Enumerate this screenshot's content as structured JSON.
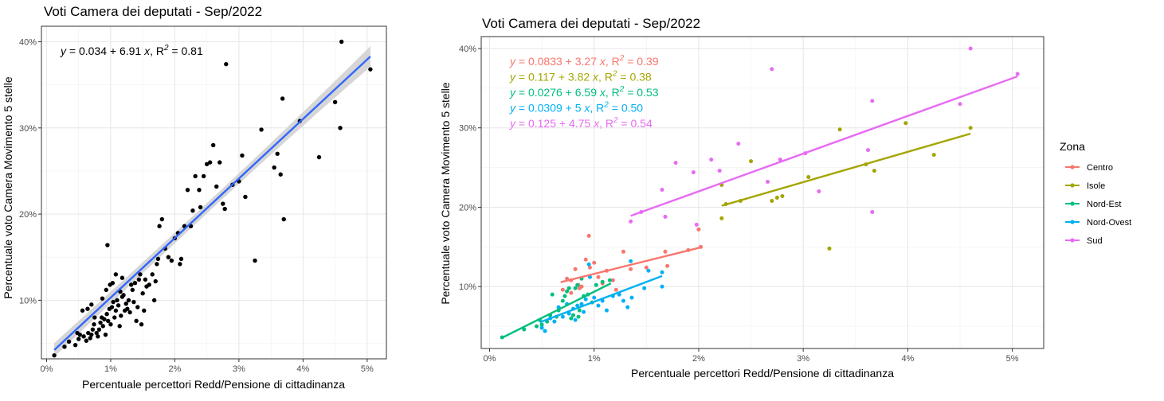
{
  "chart_data": [
    {
      "type": "scatter",
      "title": "Voti Camera dei deputati - Sep/2022",
      "xlabel": "Percentuale percettori Redd/Pensione di cittadinanza",
      "ylabel": "Percentuale voto Camera Movimento 5 stelle",
      "x_ticks": [
        "0%",
        "1%",
        "2%",
        "3%",
        "4%",
        "5%"
      ],
      "y_ticks": [
        "10%",
        "20%",
        "30%",
        "40%"
      ],
      "xlim": [
        -0.0008,
        0.053
      ],
      "ylim": [
        0.032,
        0.418
      ],
      "grid": true,
      "point_color": "#000000",
      "fit_color": "#3366ff",
      "band_color": "#d2d2d2",
      "fit": {
        "intercept": 0.034,
        "slope": 6.91,
        "x_range": [
          0.0012,
          0.0505
        ],
        "band_se": [
          0.008,
          0.006,
          0.012
        ]
      },
      "annotation": {
        "text": "y = 0.034 + 6.91 x, R² = 0.81",
        "y_part": "y",
        "mid_part": " = 0.034 + 6.91 ",
        "x_part": "x",
        "r_part": ", R",
        "sup": "2",
        "end_part": " = 0.81"
      },
      "points": [
        [
          0.0012,
          0.036
        ],
        [
          0.0028,
          0.046
        ],
        [
          0.0035,
          0.052
        ],
        [
          0.0045,
          0.048
        ],
        [
          0.005,
          0.055
        ],
        [
          0.0052,
          0.06
        ],
        [
          0.0048,
          0.062
        ],
        [
          0.0058,
          0.058
        ],
        [
          0.0062,
          0.053
        ],
        [
          0.0065,
          0.062
        ],
        [
          0.0068,
          0.056
        ],
        [
          0.007,
          0.06
        ],
        [
          0.0072,
          0.066
        ],
        [
          0.0074,
          0.072
        ],
        [
          0.0075,
          0.08
        ],
        [
          0.0078,
          0.062
        ],
        [
          0.008,
          0.058
        ],
        [
          0.0082,
          0.066
        ],
        [
          0.0084,
          0.074
        ],
        [
          0.0086,
          0.08
        ],
        [
          0.0088,
          0.07
        ],
        [
          0.009,
          0.078
        ],
        [
          0.0092,
          0.06
        ],
        [
          0.0094,
          0.084
        ],
        [
          0.0096,
          0.076
        ],
        [
          0.0098,
          0.09
        ],
        [
          0.01,
          0.072
        ],
        [
          0.0102,
          0.092
        ],
        [
          0.0104,
          0.098
        ],
        [
          0.0106,
          0.08
        ],
        [
          0.0108,
          0.088
        ],
        [
          0.011,
          0.1
        ],
        [
          0.0112,
          0.094
        ],
        [
          0.0114,
          0.07
        ],
        [
          0.0116,
          0.082
        ],
        [
          0.0118,
          0.104
        ],
        [
          0.012,
          0.106
        ],
        [
          0.0122,
          0.088
        ],
        [
          0.0124,
          0.096
        ],
        [
          0.0126,
          0.09
        ],
        [
          0.0128,
          0.1
        ],
        [
          0.013,
          0.086
        ],
        [
          0.0132,
          0.118
        ],
        [
          0.0134,
          0.112
        ],
        [
          0.0136,
          0.098
        ],
        [
          0.0138,
          0.12
        ],
        [
          0.014,
          0.076
        ],
        [
          0.0142,
          0.092
        ],
        [
          0.0144,
          0.124
        ],
        [
          0.0146,
          0.13
        ],
        [
          0.0148,
          0.072
        ],
        [
          0.015,
          0.108
        ],
        [
          0.0152,
          0.088
        ],
        [
          0.0154,
          0.124
        ],
        [
          0.0156,
          0.116
        ],
        [
          0.016,
          0.118
        ],
        [
          0.0165,
          0.13
        ],
        [
          0.0168,
          0.1
        ],
        [
          0.017,
          0.122
        ],
        [
          0.0172,
          0.142
        ],
        [
          0.0174,
          0.148
        ],
        [
          0.0176,
          0.186
        ],
        [
          0.018,
          0.194
        ],
        [
          0.0185,
          0.16
        ],
        [
          0.019,
          0.15
        ],
        [
          0.0195,
          0.146
        ],
        [
          0.02,
          0.172
        ],
        [
          0.0205,
          0.178
        ],
        [
          0.0208,
          0.142
        ],
        [
          0.021,
          0.148
        ],
        [
          0.0215,
          0.186
        ],
        [
          0.022,
          0.228
        ],
        [
          0.0225,
          0.186
        ],
        [
          0.0228,
          0.204
        ],
        [
          0.0232,
          0.244
        ],
        [
          0.0238,
          0.228
        ],
        [
          0.024,
          0.208
        ],
        [
          0.0245,
          0.244
        ],
        [
          0.025,
          0.258
        ],
        [
          0.0255,
          0.26
        ],
        [
          0.026,
          0.28
        ],
        [
          0.0265,
          0.232
        ],
        [
          0.027,
          0.26
        ],
        [
          0.0275,
          0.212
        ],
        [
          0.0278,
          0.206
        ],
        [
          0.028,
          0.374
        ],
        [
          0.029,
          0.234
        ],
        [
          0.03,
          0.238
        ],
        [
          0.0305,
          0.268
        ],
        [
          0.031,
          0.22
        ],
        [
          0.0325,
          0.146
        ],
        [
          0.0335,
          0.298
        ],
        [
          0.0355,
          0.254
        ],
        [
          0.036,
          0.27
        ],
        [
          0.0365,
          0.246
        ],
        [
          0.0368,
          0.334
        ],
        [
          0.037,
          0.194
        ],
        [
          0.0395,
          0.308
        ],
        [
          0.0425,
          0.266
        ],
        [
          0.045,
          0.33
        ],
        [
          0.0458,
          0.3
        ],
        [
          0.046,
          0.4
        ],
        [
          0.0505,
          0.368
        ],
        [
          0.0095,
          0.164
        ],
        [
          0.0108,
          0.13
        ],
        [
          0.0118,
          0.126
        ],
        [
          0.0056,
          0.088
        ],
        [
          0.0064,
          0.09
        ],
        [
          0.007,
          0.095
        ],
        [
          0.0087,
          0.102
        ],
        [
          0.0093,
          0.112
        ],
        [
          0.0099,
          0.118
        ],
        [
          0.0103,
          0.12
        ],
        [
          0.0115,
          0.11
        ]
      ]
    },
    {
      "type": "scatter",
      "title": "Voti Camera dei deputati - Sep/2022",
      "xlabel": "Percentuale percettori Redd/Pensione di cittadinanza",
      "ylabel": "Percentuale voto Camera Movimento 5 stelle",
      "x_ticks": [
        "0%",
        "1%",
        "2%",
        "3%",
        "4%",
        "5%"
      ],
      "y_ticks": [
        "10%",
        "20%",
        "30%",
        "40%"
      ],
      "xlim": [
        -0.0008,
        0.053
      ],
      "ylim": [
        0.022,
        0.415
      ],
      "grid": true,
      "legend": {
        "title": "Zona",
        "placement": "right"
      },
      "series": [
        {
          "name": "Centro",
          "color": "#f8766d",
          "fit": {
            "intercept": 0.0833,
            "slope": 3.27,
            "x_range": [
              0.0068,
              0.0202
            ]
          },
          "annotation": {
            "y_part": "y",
            "mid_part": " = 0.0833 + 3.27 ",
            "x_part": "x",
            "r_part": ", R",
            "sup": "2",
            "end_part": " = 0.39"
          },
          "points": [
            [
              0.007,
              0.096
            ],
            [
              0.0074,
              0.11
            ],
            [
              0.0078,
              0.108
            ],
            [
              0.0082,
              0.122
            ],
            [
              0.0085,
              0.102
            ],
            [
              0.0088,
              0.1
            ],
            [
              0.0092,
              0.134
            ],
            [
              0.0095,
              0.164
            ],
            [
              0.01,
              0.13
            ],
            [
              0.0104,
              0.112
            ],
            [
              0.0108,
              0.104
            ],
            [
              0.0112,
              0.12
            ],
            [
              0.0118,
              0.108
            ],
            [
              0.0128,
              0.144
            ],
            [
              0.0135,
              0.122
            ],
            [
              0.015,
              0.124
            ],
            [
              0.0168,
              0.144
            ],
            [
              0.017,
              0.126
            ],
            [
              0.019,
              0.146
            ],
            [
              0.02,
              0.172
            ],
            [
              0.0202,
              0.15
            ],
            [
              0.0096,
              0.124
            ],
            [
              0.0078,
              0.092
            ],
            [
              0.0086,
              0.098
            ],
            [
              0.0121,
              0.096
            ]
          ]
        },
        {
          "name": "Isole",
          "color": "#a3a500",
          "fit": {
            "intercept": 0.117,
            "slope": 3.82,
            "x_range": [
              0.0222,
              0.046
            ]
          },
          "annotation": {
            "y_part": "y",
            "mid_part": " = 0.117 + 3.82 ",
            "x_part": "x",
            "r_part": ", R",
            "sup": "2",
            "end_part": " = 0.38"
          },
          "points": [
            [
              0.0222,
              0.228
            ],
            [
              0.0222,
              0.186
            ],
            [
              0.0226,
              0.204
            ],
            [
              0.024,
              0.208
            ],
            [
              0.025,
              0.258
            ],
            [
              0.027,
              0.208
            ],
            [
              0.0275,
              0.212
            ],
            [
              0.028,
              0.214
            ],
            [
              0.0305,
              0.238
            ],
            [
              0.0325,
              0.148
            ],
            [
              0.0335,
              0.298
            ],
            [
              0.036,
              0.254
            ],
            [
              0.0368,
              0.246
            ],
            [
              0.0398,
              0.306
            ],
            [
              0.0425,
              0.266
            ],
            [
              0.046,
              0.3
            ]
          ]
        },
        {
          "name": "Nord-Est",
          "color": "#00bf7d",
          "fit": {
            "intercept": 0.0276,
            "slope": 6.59,
            "x_range": [
              0.0012,
              0.0116
            ]
          },
          "annotation": {
            "y_part": "y",
            "mid_part": " = 0.0276 + 6.59 ",
            "x_part": "x",
            "r_part": ", R",
            "sup": "2",
            "end_part": " = 0.53"
          },
          "points": [
            [
              0.0012,
              0.036
            ],
            [
              0.0033,
              0.046
            ],
            [
              0.0045,
              0.05
            ],
            [
              0.0048,
              0.058
            ],
            [
              0.005,
              0.052
            ],
            [
              0.0055,
              0.056
            ],
            [
              0.0058,
              0.064
            ],
            [
              0.006,
              0.09
            ],
            [
              0.0064,
              0.062
            ],
            [
              0.0066,
              0.07
            ],
            [
              0.007,
              0.082
            ],
            [
              0.0072,
              0.088
            ],
            [
              0.0074,
              0.094
            ],
            [
              0.0076,
              0.098
            ],
            [
              0.0078,
              0.06
            ],
            [
              0.008,
              0.064
            ],
            [
              0.0082,
              0.098
            ],
            [
              0.0084,
              0.102
            ],
            [
              0.0086,
              0.07
            ],
            [
              0.009,
              0.088
            ],
            [
              0.0094,
              0.09
            ],
            [
              0.0098,
              0.08
            ],
            [
              0.0102,
              0.102
            ],
            [
              0.0108,
              0.106
            ],
            [
              0.0115,
              0.108
            ],
            [
              0.0088,
              0.11
            ],
            [
              0.0085,
              0.062
            ]
          ]
        },
        {
          "name": "Nord-Ovest",
          "color": "#00b0f6",
          "fit": {
            "intercept": 0.0309,
            "slope": 5.0,
            "x_range": [
              0.0048,
              0.0165
            ]
          },
          "annotation": {
            "y_part": "y",
            "mid_part": " = 0.0309 + 5 ",
            "x_part": "x",
            "r_part": ", R",
            "sup": "2",
            "end_part": " = 0.50"
          },
          "points": [
            [
              0.005,
              0.048
            ],
            [
              0.0053,
              0.044
            ],
            [
              0.0058,
              0.06
            ],
            [
              0.0062,
              0.056
            ],
            [
              0.0066,
              0.074
            ],
            [
              0.007,
              0.062
            ],
            [
              0.0074,
              0.078
            ],
            [
              0.0076,
              0.066
            ],
            [
              0.008,
              0.072
            ],
            [
              0.0082,
              0.058
            ],
            [
              0.0084,
              0.076
            ],
            [
              0.0088,
              0.078
            ],
            [
              0.0092,
              0.084
            ],
            [
              0.0095,
              0.128
            ],
            [
              0.0096,
              0.112
            ],
            [
              0.01,
              0.086
            ],
            [
              0.0104,
              0.076
            ],
            [
              0.0108,
              0.082
            ],
            [
              0.0112,
              0.07
            ],
            [
              0.0118,
              0.088
            ],
            [
              0.0124,
              0.09
            ],
            [
              0.0128,
              0.082
            ],
            [
              0.0132,
              0.074
            ],
            [
              0.0135,
              0.132
            ],
            [
              0.0136,
              0.086
            ],
            [
              0.0148,
              0.098
            ],
            [
              0.0152,
              0.12
            ],
            [
              0.0165,
              0.1
            ],
            [
              0.0165,
              0.118
            ],
            [
              0.009,
              0.068
            ]
          ]
        },
        {
          "name": "Sud",
          "color": "#e76bf3",
          "fit": {
            "intercept": 0.125,
            "slope": 4.75,
            "x_range": [
              0.0135,
              0.0505
            ]
          },
          "annotation": {
            "y_part": "y",
            "mid_part": " = 0.125 + 4.75 ",
            "x_part": "x",
            "r_part": ", R",
            "sup": "2",
            "end_part": " = 0.54"
          },
          "points": [
            [
              0.0135,
              0.182
            ],
            [
              0.0145,
              0.194
            ],
            [
              0.0165,
              0.222
            ],
            [
              0.0168,
              0.188
            ],
            [
              0.0178,
              0.256
            ],
            [
              0.0195,
              0.244
            ],
            [
              0.0198,
              0.178
            ],
            [
              0.0212,
              0.26
            ],
            [
              0.022,
              0.246
            ],
            [
              0.0238,
              0.28
            ],
            [
              0.0266,
              0.232
            ],
            [
              0.027,
              0.374
            ],
            [
              0.0278,
              0.26
            ],
            [
              0.0302,
              0.268
            ],
            [
              0.0315,
              0.22
            ],
            [
              0.0362,
              0.272
            ],
            [
              0.0366,
              0.334
            ],
            [
              0.0366,
              0.194
            ],
            [
              0.045,
              0.33
            ],
            [
              0.046,
              0.4
            ],
            [
              0.0505,
              0.368
            ]
          ]
        }
      ]
    }
  ]
}
